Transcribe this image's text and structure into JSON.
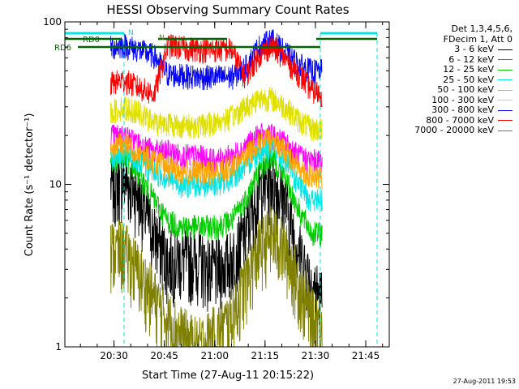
{
  "chart_data": {
    "type": "line",
    "title": "HESSI Observing Summary Count Rates",
    "xlabel": "Start Time (27-Aug-11 20:15:22)",
    "ylabel": "Count Rate (s⁻¹ detector⁻¹)",
    "x_ticks": [
      "20:30",
      "20:45",
      "21:00",
      "21:15",
      "21:30",
      "21:45"
    ],
    "y_ticks": [
      "1",
      "10",
      "100"
    ],
    "xlim": [
      "20:15:22",
      "21:52"
    ],
    "ylim": [
      1,
      100
    ],
    "yscale": "log",
    "legend_position": "right",
    "legend_header": [
      "Det 1,3,4,5,6,",
      "FDecim 1, Att 0"
    ],
    "series": [
      {
        "name": "3 - 6 keV",
        "color": "#000000",
        "x": [
          "20:29",
          "20:33",
          "20:37",
          "20:42",
          "20:46",
          "20:50",
          "20:55",
          "21:00",
          "21:05",
          "21:09",
          "21:13",
          "21:17",
          "21:21",
          "21:25",
          "21:29",
          "21:32"
        ],
        "values": [
          10,
          11,
          9,
          5,
          3.5,
          3.5,
          3.5,
          3,
          3.5,
          5,
          9,
          11,
          8,
          4,
          2.5,
          2
        ]
      },
      {
        "name": "6 - 12 keV",
        "color": "#ff00ff",
        "x": [
          "20:29",
          "20:33",
          "20:37",
          "20:42",
          "20:46",
          "20:50",
          "20:55",
          "21:00",
          "21:05",
          "21:09",
          "21:13",
          "21:17",
          "21:21",
          "21:25",
          "21:29",
          "21:32"
        ],
        "values": [
          20,
          20,
          18,
          16,
          16,
          15,
          15,
          14,
          15,
          17,
          20,
          20,
          18,
          15,
          14,
          14
        ]
      },
      {
        "name": "12 - 25 keV",
        "color": "#00cc00",
        "x": [
          "20:29",
          "20:33",
          "20:37",
          "20:42",
          "20:46",
          "20:50",
          "20:55",
          "21:00",
          "21:05",
          "21:09",
          "21:13",
          "21:17",
          "21:21",
          "21:25",
          "21:29",
          "21:32"
        ],
        "values": [
          14,
          15,
          12,
          8,
          6,
          5.5,
          5.5,
          5.5,
          6,
          8,
          12,
          15,
          11,
          7,
          5,
          5
        ]
      },
      {
        "name": "25 - 50 keV",
        "color": "#00e5e5",
        "x": [
          "20:29",
          "20:33",
          "20:37",
          "20:42",
          "20:46",
          "20:50",
          "20:55",
          "21:00",
          "21:05",
          "21:09",
          "21:13",
          "21:17",
          "21:21",
          "21:25",
          "21:29",
          "21:32"
        ],
        "values": [
          15,
          15,
          14,
          12,
          11,
          10,
          10,
          10,
          11,
          13,
          16,
          17,
          14,
          10,
          8,
          8
        ]
      },
      {
        "name": "50 - 100 keV",
        "color": "#ffa500",
        "x": [
          "20:29",
          "20:33",
          "20:37",
          "20:42",
          "20:46",
          "20:50",
          "20:55",
          "21:00",
          "21:05",
          "21:09",
          "21:13",
          "21:17",
          "21:21",
          "21:25",
          "21:29",
          "21:32"
        ],
        "values": [
          17,
          18,
          16,
          14,
          13,
          12,
          12,
          12,
          13,
          15,
          18,
          19,
          16,
          13,
          11,
          11
        ]
      },
      {
        "name": "100 - 300 keV",
        "color": "#e0e000",
        "x": [
          "20:29",
          "20:33",
          "20:37",
          "20:42",
          "20:46",
          "20:50",
          "20:55",
          "21:00",
          "21:05",
          "21:09",
          "21:13",
          "21:17",
          "21:21",
          "21:25",
          "21:29",
          "21:32"
        ],
        "values": [
          28,
          30,
          28,
          24,
          24,
          23,
          23,
          24,
          26,
          30,
          34,
          34,
          30,
          25,
          22,
          22
        ]
      },
      {
        "name": "300 - 800 keV",
        "color": "#0000ff",
        "x": [
          "20:29",
          "20:33",
          "20:37",
          "20:42",
          "20:46",
          "20:50",
          "20:55",
          "21:00",
          "21:05",
          "21:09",
          "21:13",
          "21:17",
          "21:21",
          "21:25",
          "21:29",
          "21:32"
        ],
        "values": [
          70,
          72,
          68,
          62,
          48,
          47,
          46,
          46,
          46,
          52,
          70,
          78,
          65,
          55,
          50,
          50
        ]
      },
      {
        "name": "800 - 7000 keV",
        "color": "#ff0000",
        "x": [
          "20:29",
          "20:33",
          "20:37",
          "20:42",
          "20:46",
          "20:50",
          "20:55",
          "21:00",
          "21:05",
          "21:09",
          "21:13",
          "21:17",
          "21:21",
          "21:25",
          "21:29",
          "21:32"
        ],
        "values": [
          42,
          44,
          40,
          36,
          72,
          70,
          68,
          68,
          68,
          46,
          62,
          72,
          60,
          48,
          38,
          36
        ]
      },
      {
        "name": "7000 - 20000 keV",
        "color": "#808000",
        "x": [
          "20:29",
          "20:33",
          "20:37",
          "20:42",
          "20:46",
          "20:50",
          "20:55",
          "21:00",
          "21:05",
          "21:09",
          "21:13",
          "21:17",
          "21:21",
          "21:25",
          "21:29",
          "21:32"
        ],
        "values": [
          4,
          4,
          3,
          2,
          1.5,
          1.2,
          1,
          1.2,
          1.5,
          2.5,
          4,
          5,
          4,
          2.5,
          1.5,
          1.5
        ]
      }
    ],
    "annotations": [
      {
        "text": "RD0",
        "color": "#006600"
      },
      {
        "text": "RD6",
        "color": "#006600"
      },
      {
        "text": "N",
        "color": "#00e5e5"
      },
      {
        "text": "N",
        "color": "#808000"
      }
    ]
  },
  "footer": {
    "timestamp": "27-Aug-2011 19:53"
  }
}
